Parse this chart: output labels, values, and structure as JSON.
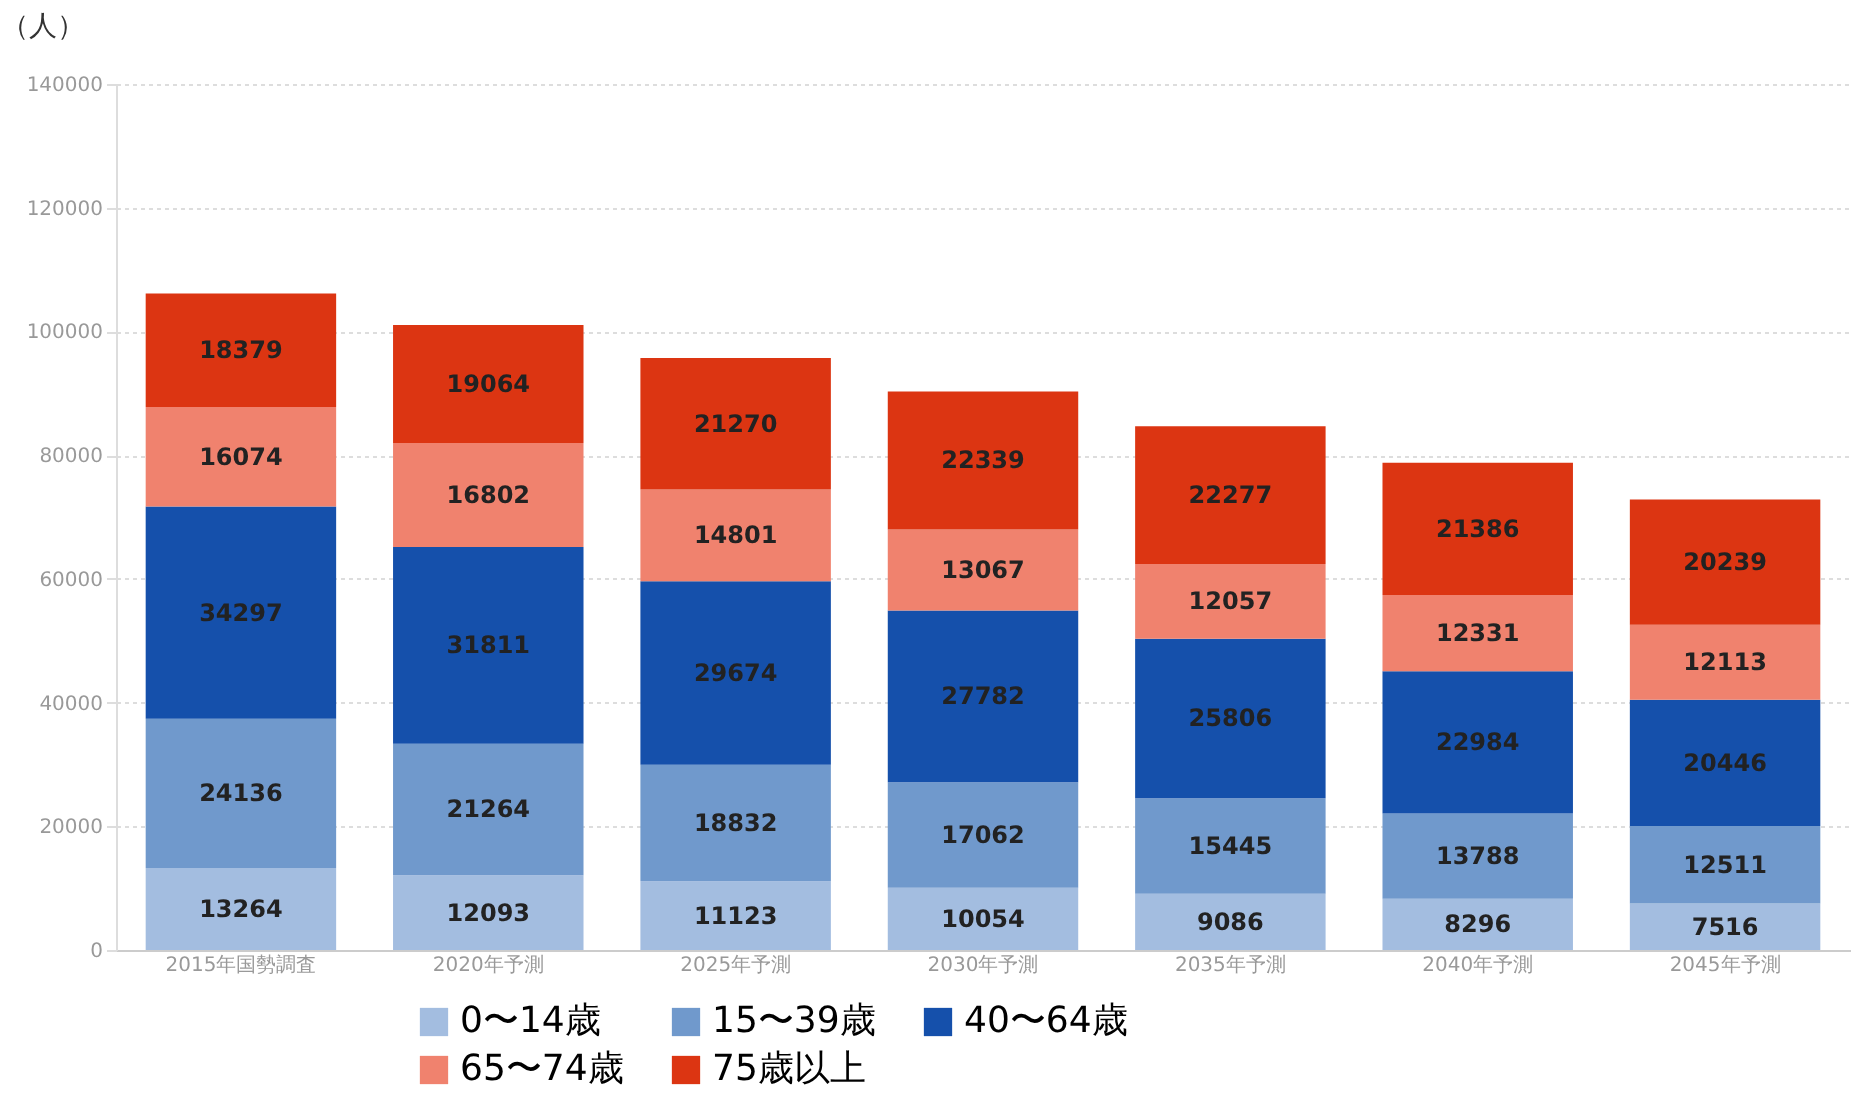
{
  "chart_data": {
    "type": "bar",
    "stacked": true,
    "ylabel": "（人）",
    "categories": [
      "2015年国勢調査",
      "2020年予測",
      "2025年予測",
      "2030年予測",
      "2035年予測",
      "2040年予測",
      "2045年予測"
    ],
    "series": [
      {
        "name": "0〜14歳",
        "color": "#a3bde0",
        "values": [
          13264,
          12093,
          11123,
          10054,
          9086,
          8296,
          7516
        ]
      },
      {
        "name": "15〜39歳",
        "color": "#7099cc",
        "values": [
          24136,
          21264,
          18832,
          17062,
          15445,
          13788,
          12511
        ]
      },
      {
        "name": "40〜64歳",
        "color": "#1550ab",
        "values": [
          34297,
          31811,
          29674,
          27782,
          25806,
          22984,
          20446
        ]
      },
      {
        "name": "65〜74歳",
        "color": "#f0826e",
        "values": [
          16074,
          16802,
          14801,
          13067,
          12057,
          12331,
          12113
        ]
      },
      {
        "name": "75歳以上",
        "color": "#dc3512",
        "values": [
          18379,
          19064,
          21270,
          22339,
          22277,
          21386,
          20239
        ]
      }
    ],
    "ylim": [
      0,
      140000
    ],
    "yticks": [
      0,
      20000,
      40000,
      60000,
      80000,
      100000,
      120000,
      140000
    ],
    "grid": "y",
    "legend": "bottom",
    "data_labels": true
  }
}
